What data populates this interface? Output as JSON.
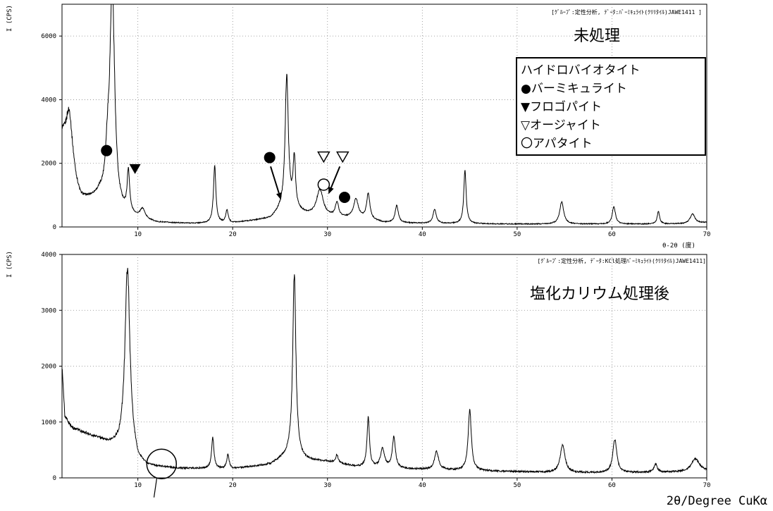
{
  "chart_data": [
    {
      "type": "line",
      "ylabel": "I (CPS)",
      "header": "[ｸﾞﾙｰﾌﾟ:定性分析, ﾃﾞｰﾀ:ﾊﾞｰﾐｷｭﾗｲﾄ(ｸﾘﾘﾀｲﾙ)JAWE1411     ]",
      "title": "未処理",
      "xaxis_title": "θ-2θ (度)",
      "xlim": [
        2,
        70
      ],
      "ylim": [
        0,
        7000
      ],
      "x_ticks": [
        "10",
        "20",
        "30",
        "40",
        "50",
        "60",
        "70"
      ],
      "y_ticks": [
        "0",
        "2000",
        "4000",
        "6000"
      ],
      "legend": [
        "ハイドロバイオタイト",
        "●バーミキュライト",
        "▼フロゴパイト",
        "▽オージャイト",
        "〇アパタイト"
      ],
      "baseline": [
        [
          2,
          2500
        ],
        [
          3,
          1000
        ],
        [
          4,
          700
        ],
        [
          6,
          900
        ],
        [
          8,
          420
        ],
        [
          10,
          250
        ],
        [
          12,
          120
        ],
        [
          16,
          100
        ],
        [
          20,
          120
        ],
        [
          24,
          260
        ],
        [
          25,
          500
        ],
        [
          26,
          600
        ],
        [
          27,
          470
        ],
        [
          28,
          380
        ],
        [
          29,
          380
        ],
        [
          30,
          330
        ],
        [
          32,
          280
        ],
        [
          34,
          250
        ],
        [
          36,
          130
        ],
        [
          40,
          110
        ],
        [
          44,
          100
        ],
        [
          50,
          90
        ],
        [
          56,
          90
        ],
        [
          60,
          90
        ],
        [
          64,
          90
        ],
        [
          68,
          100
        ],
        [
          70,
          140
        ]
      ],
      "peaks": [
        {
          "x": 2.8,
          "y": 2300,
          "w": 0.5
        },
        {
          "x": 6.8,
          "y": 1100,
          "w": 0.25
        },
        {
          "x": 7.3,
          "y": 6900,
          "w": 0.3
        },
        {
          "x": 9.0,
          "y": 1300,
          "w": 0.15
        },
        {
          "x": 10.5,
          "y": 300,
          "w": 0.3
        },
        {
          "x": 18.1,
          "y": 1800,
          "w": 0.15
        },
        {
          "x": 19.4,
          "y": 400,
          "w": 0.15
        },
        {
          "x": 25.7,
          "y": 4200,
          "w": 0.2
        },
        {
          "x": 26.5,
          "y": 1600,
          "w": 0.15
        },
        {
          "x": 29.2,
          "y": 800,
          "w": 0.4
        },
        {
          "x": 31.0,
          "y": 450,
          "w": 0.2
        },
        {
          "x": 33.0,
          "y": 600,
          "w": 0.3
        },
        {
          "x": 34.3,
          "y": 800,
          "w": 0.2
        },
        {
          "x": 37.3,
          "y": 550,
          "w": 0.2
        },
        {
          "x": 41.3,
          "y": 450,
          "w": 0.2
        },
        {
          "x": 44.5,
          "y": 1700,
          "w": 0.15
        },
        {
          "x": 54.7,
          "y": 700,
          "w": 0.25
        },
        {
          "x": 60.2,
          "y": 550,
          "w": 0.2
        },
        {
          "x": 64.9,
          "y": 400,
          "w": 0.15
        },
        {
          "x": 68.5,
          "y": 300,
          "w": 0.3
        }
      ],
      "markers": [
        {
          "sym": "●",
          "x": 6.7,
          "y": 2400
        },
        {
          "sym": "▼",
          "x": 9.7,
          "y": 1820
        },
        {
          "sym": "●",
          "x": 23.9,
          "y": 2180
        },
        {
          "sym": "▽",
          "x": 29.6,
          "y": 2200
        },
        {
          "sym": "▽",
          "x": 31.6,
          "y": 2200
        },
        {
          "sym": "○",
          "x": 29.6,
          "y": 1330
        },
        {
          "sym": "●",
          "x": 31.8,
          "y": 930
        }
      ],
      "arrows": [
        {
          "from": [
            24.0,
            1900
          ],
          "to": [
            25.1,
            850
          ]
        },
        {
          "from": [
            31.3,
            1900
          ],
          "to": [
            30.1,
            1030
          ]
        }
      ]
    },
    {
      "type": "line",
      "ylabel": "I (CPS)",
      "header": "[ｸﾞﾙｰﾌﾟ:定性分析, ﾃﾞｰﾀ:KCl処理ﾊﾞｰﾐｷｭﾗｲﾄ(ｸﾘﾘﾀｲﾙ)JAWE1411]",
      "title": "塩化カリウム処理後",
      "xlim": [
        2,
        70
      ],
      "ylim": [
        0,
        4000
      ],
      "x_ticks": [
        "10",
        "20",
        "30",
        "40",
        "50",
        "60",
        "70"
      ],
      "y_ticks": [
        "0",
        "1000",
        "2000",
        "3000",
        "4000"
      ],
      "baseline": [
        [
          2,
          2000
        ],
        [
          2.3,
          1100
        ],
        [
          3,
          900
        ],
        [
          5,
          760
        ],
        [
          7,
          620
        ],
        [
          8,
          600
        ],
        [
          9,
          800
        ],
        [
          10,
          300
        ],
        [
          11,
          210
        ],
        [
          14,
          170
        ],
        [
          20,
          160
        ],
        [
          24,
          240
        ],
        [
          25,
          330
        ],
        [
          26,
          400
        ],
        [
          27,
          350
        ],
        [
          28,
          310
        ],
        [
          30,
          290
        ],
        [
          33,
          200
        ],
        [
          38,
          160
        ],
        [
          45,
          130
        ],
        [
          50,
          110
        ],
        [
          55,
          90
        ],
        [
          60,
          90
        ],
        [
          66,
          100
        ],
        [
          70,
          120
        ]
      ],
      "peaks": [
        {
          "x": 8.9,
          "y": 2950,
          "w": 0.3
        },
        {
          "x": 17.9,
          "y": 550,
          "w": 0.15
        },
        {
          "x": 19.5,
          "y": 250,
          "w": 0.15
        },
        {
          "x": 26.5,
          "y": 3300,
          "w": 0.2
        },
        {
          "x": 31.0,
          "y": 150,
          "w": 0.15
        },
        {
          "x": 34.3,
          "y": 900,
          "w": 0.15
        },
        {
          "x": 35.8,
          "y": 330,
          "w": 0.25
        },
        {
          "x": 37.0,
          "y": 550,
          "w": 0.2
        },
        {
          "x": 41.5,
          "y": 330,
          "w": 0.25
        },
        {
          "x": 45.0,
          "y": 1100,
          "w": 0.2
        },
        {
          "x": 54.8,
          "y": 500,
          "w": 0.3
        },
        {
          "x": 60.3,
          "y": 600,
          "w": 0.25
        },
        {
          "x": 64.6,
          "y": 150,
          "w": 0.2
        },
        {
          "x": 68.8,
          "y": 230,
          "w": 0.5
        }
      ],
      "circle": {
        "x": 12.5,
        "y": 250
      },
      "pointer": {
        "from": [
          12.0,
          0
        ],
        "to": [
          11.7,
          -350
        ]
      },
      "footer_label": "2θ/Degree CuKα"
    }
  ]
}
